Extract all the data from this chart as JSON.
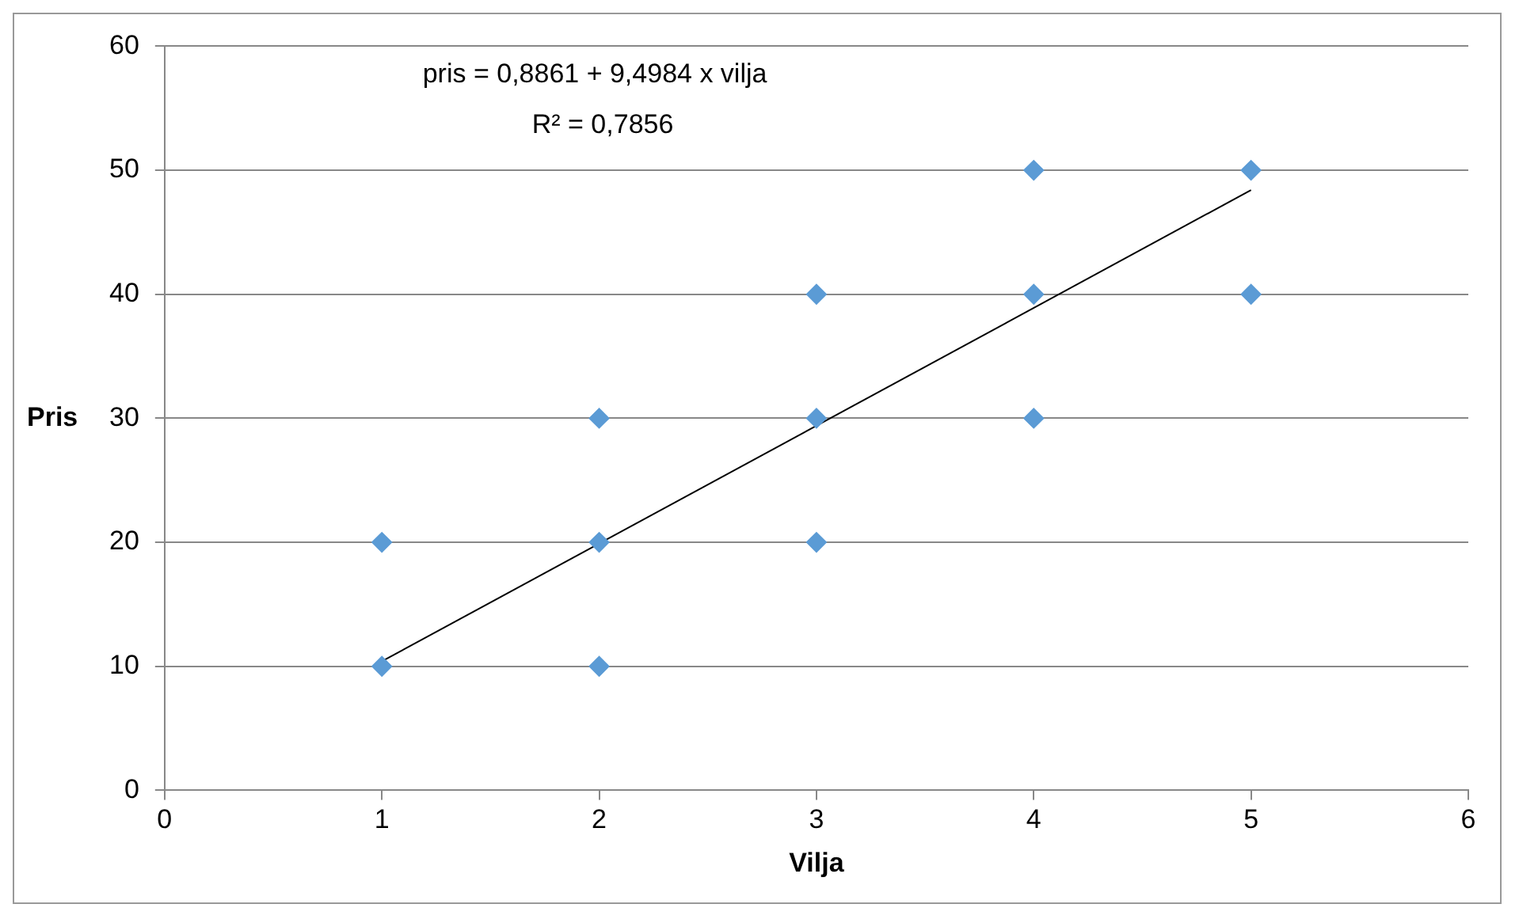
{
  "chart_data": {
    "type": "scatter",
    "xlabel": "Vilja",
    "ylabel": "Pris",
    "annotations": [
      "pris = 0,8861 + 9,4984 x vilja",
      "R² = 0,7856"
    ],
    "xlim": [
      0,
      6
    ],
    "xticks": [
      0,
      1,
      2,
      3,
      4,
      5,
      6
    ],
    "ylim": [
      0,
      60
    ],
    "yticks": [
      0,
      10,
      20,
      30,
      40,
      50,
      60
    ],
    "grid": "y",
    "legend": false,
    "marker": "diamond",
    "series": [
      {
        "color": "#5b9bd5",
        "x": [
          1,
          1,
          2,
          2,
          2,
          3,
          3,
          3,
          4,
          4,
          4,
          5,
          5
        ],
        "values": [
          20,
          10,
          30,
          20,
          10,
          40,
          30,
          20,
          50,
          40,
          30,
          50,
          40
        ]
      },
      {
        "type": "line",
        "color": "#000000",
        "line_style": "solid",
        "marker": "none",
        "x": [
          1,
          5
        ],
        "values": [
          10.4,
          48.4
        ]
      }
    ]
  }
}
